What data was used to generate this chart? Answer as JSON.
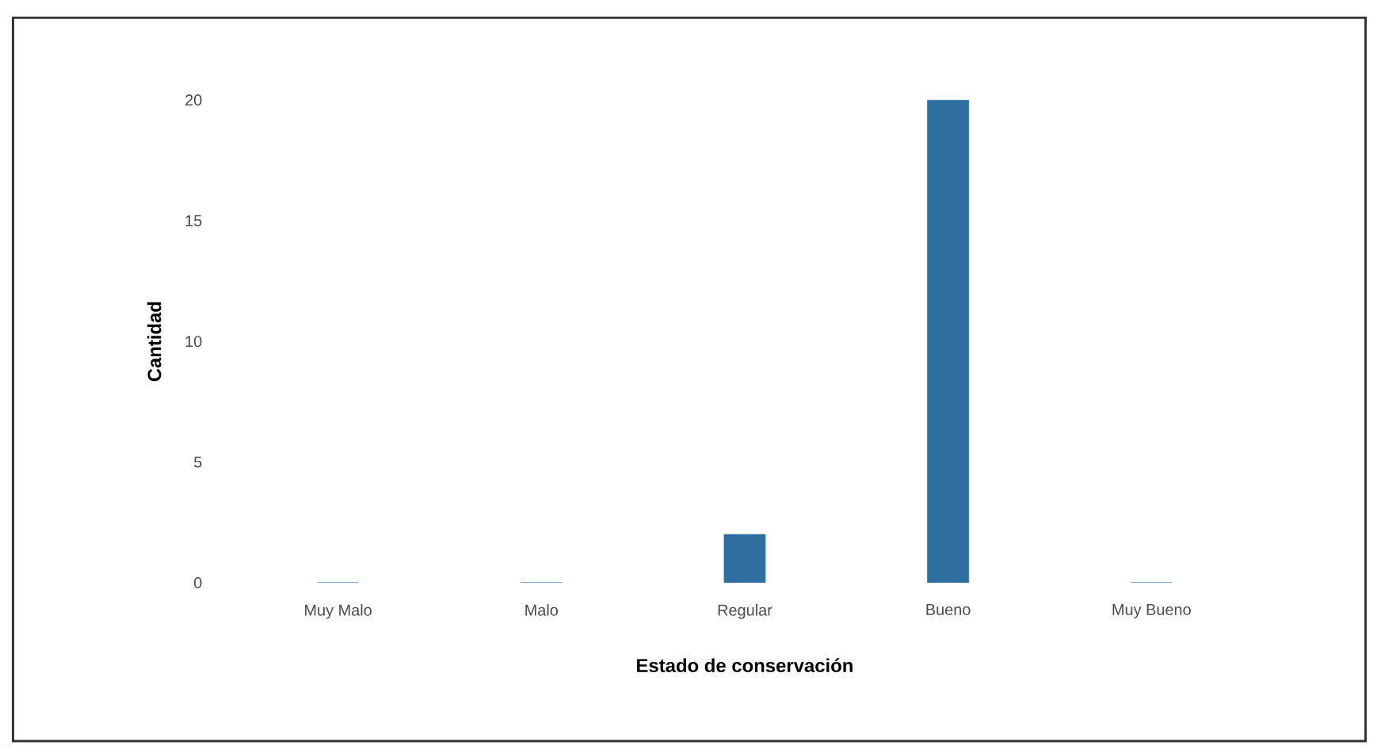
{
  "chart_data": {
    "type": "bar",
    "xlabel": "Estado de conservación",
    "ylabel": "Cantidad",
    "categories": [
      "Muy Malo",
      "Malo",
      "Regular",
      "Bueno",
      "Muy Bueno"
    ],
    "values": [
      0,
      0,
      2,
      20,
      0
    ],
    "color": "#2f6f9f",
    "ylim": [
      0,
      20
    ],
    "yticks": [
      0,
      5,
      10,
      15,
      20
    ]
  }
}
